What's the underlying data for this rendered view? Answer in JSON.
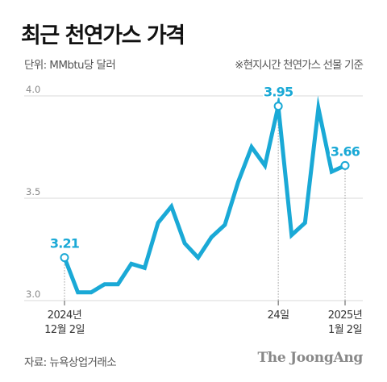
{
  "header": {
    "title": "최근 천연가스 가격",
    "unit": "단위: MMbtu당 달러",
    "basis": "※현지시간 천연가스 선물 기준"
  },
  "footer": {
    "source": "자료: 뉴욕상업거래소",
    "brand": "The JoongAng"
  },
  "colors": {
    "line": "#1aa9d6",
    "grid": "#d9d9d9"
  },
  "chart_data": {
    "type": "line",
    "title": "최근 천연가스 가격",
    "ylim": [
      3.0,
      4.0
    ],
    "yticks": [
      "4.0",
      "3.5",
      "3.0"
    ],
    "grid": true,
    "xticks": [
      {
        "index": 0,
        "lines": [
          "2024년",
          "12월 2일"
        ]
      },
      {
        "index": 16,
        "lines": [
          "24일"
        ]
      },
      {
        "index": 21,
        "lines": [
          "2025년",
          "1월 2일"
        ]
      }
    ],
    "series": [
      {
        "values": [
          3.21,
          3.04,
          3.04,
          3.08,
          3.08,
          3.18,
          3.16,
          3.38,
          3.46,
          3.28,
          3.21,
          3.31,
          3.37,
          3.58,
          3.75,
          3.66,
          3.95,
          3.32,
          3.38,
          3.94,
          3.63,
          3.66
        ]
      }
    ],
    "data_labels": [
      {
        "index": 0,
        "text": "3.21"
      },
      {
        "index": 16,
        "text": "3.95"
      },
      {
        "index": 21,
        "text": "3.66"
      }
    ]
  }
}
